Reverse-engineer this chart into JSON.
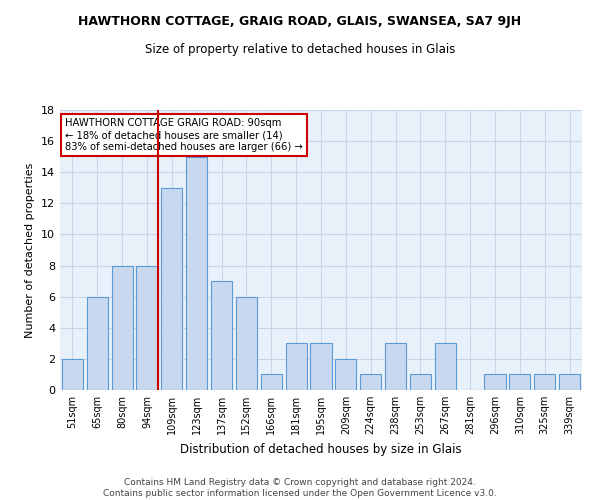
{
  "title": "HAWTHORN COTTAGE, GRAIG ROAD, GLAIS, SWANSEA, SA7 9JH",
  "subtitle": "Size of property relative to detached houses in Glais",
  "xlabel": "Distribution of detached houses by size in Glais",
  "ylabel": "Number of detached properties",
  "footer_line1": "Contains HM Land Registry data © Crown copyright and database right 2024.",
  "footer_line2": "Contains public sector information licensed under the Open Government Licence v3.0.",
  "bar_labels": [
    "51sqm",
    "65sqm",
    "80sqm",
    "94sqm",
    "109sqm",
    "123sqm",
    "137sqm",
    "152sqm",
    "166sqm",
    "181sqm",
    "195sqm",
    "209sqm",
    "224sqm",
    "238sqm",
    "253sqm",
    "267sqm",
    "281sqm",
    "296sqm",
    "310sqm",
    "325sqm",
    "339sqm"
  ],
  "bar_heights": [
    2,
    6,
    8,
    8,
    13,
    15,
    7,
    6,
    1,
    3,
    3,
    2,
    1,
    3,
    1,
    3,
    0,
    1,
    1,
    1,
    1
  ],
  "bar_color": "#c8d9ef",
  "bar_edgecolor": "#5b9bd5",
  "grid_color": "#c8d4e8",
  "background_color": "#e8f0fa",
  "vline_index": 3,
  "vline_color": "#cc0000",
  "annotation_text": "HAWTHORN COTTAGE GRAIG ROAD: 90sqm\n← 18% of detached houses are smaller (14)\n83% of semi-detached houses are larger (66) →",
  "annotation_box_edgecolor": "#cc0000",
  "ylim": [
    0,
    18
  ],
  "yticks": [
    0,
    2,
    4,
    6,
    8,
    10,
    12,
    14,
    16,
    18
  ]
}
